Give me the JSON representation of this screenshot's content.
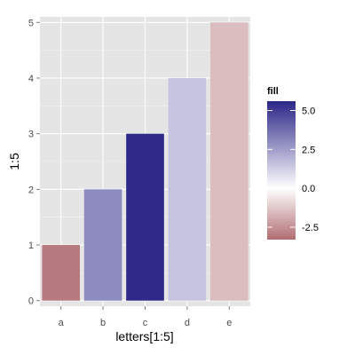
{
  "chart_data": {
    "type": "bar",
    "categories": [
      "a",
      "b",
      "c",
      "d",
      "e"
    ],
    "values": [
      1,
      2,
      3,
      4,
      5
    ],
    "fill_values": [
      -3.0,
      3.0,
      5.5,
      1.5,
      -1.5
    ],
    "title": "",
    "xlabel": "letters[1:5]",
    "ylabel": "1:5",
    "ylim": [
      -0.1,
      5.1
    ],
    "yticks": [
      0,
      1,
      2,
      3,
      4,
      5
    ],
    "grid": true,
    "legend": {
      "title": "fill",
      "placement": "right",
      "range": [
        -3.3,
        5.6
      ],
      "breaks": [
        5.0,
        2.5,
        0.0,
        -2.5
      ],
      "break_labels": [
        "5.0",
        "2.5",
        "0.0",
        "-2.5"
      ],
      "low_color": "#b06d72",
      "mid_color": "#ffffff",
      "high_color": "#2b2687"
    }
  }
}
